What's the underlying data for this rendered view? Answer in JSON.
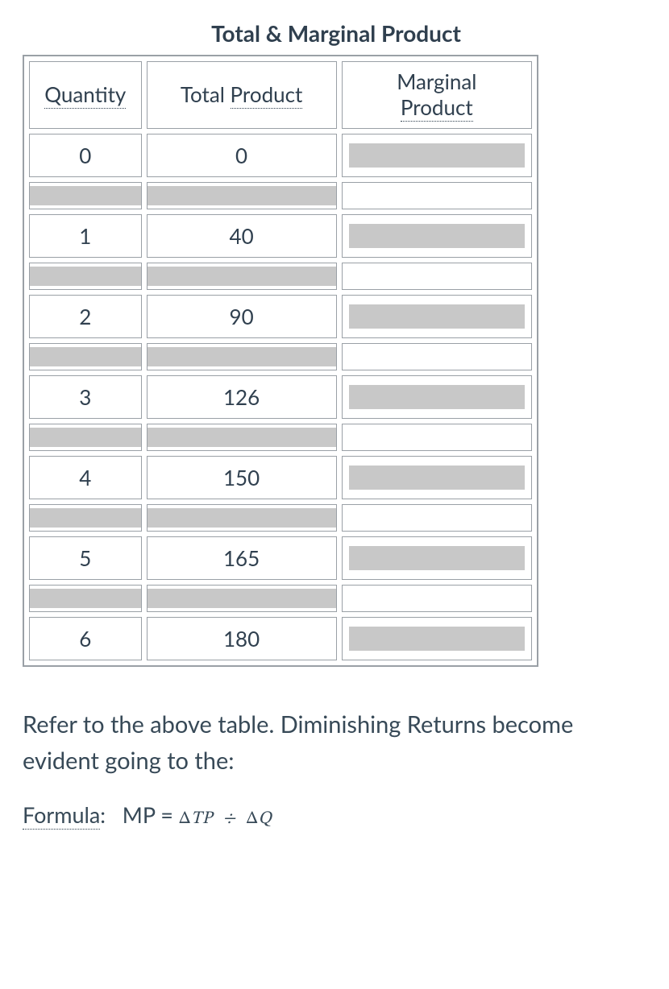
{
  "title": "Total & Marginal Product",
  "columns": {
    "qty": "Quantity",
    "tp_prefix": "Total ",
    "tp_link": "Product",
    "mp_line1": "Marginal",
    "mp_line2": "Product"
  },
  "rows": [
    {
      "qty": "0",
      "tp": "0"
    },
    {
      "qty": "1",
      "tp": "40"
    },
    {
      "qty": "2",
      "tp": "90"
    },
    {
      "qty": "3",
      "tp": "126"
    },
    {
      "qty": "4",
      "tp": "150"
    },
    {
      "qty": "5",
      "tp": "165"
    },
    {
      "qty": "6",
      "tp": "180"
    }
  ],
  "prompt": "Refer to the above table. Diminishing Returns become evident going to the:",
  "formula": {
    "label": "Formula",
    "lhs": "MP",
    "rhs_a": "ΔTP",
    "op": "÷",
    "rhs_b": "ΔQ"
  },
  "style": {
    "shaded_fill": "#c8c8c8",
    "border_color": "#9aa0a6",
    "text_color": "#30404f"
  }
}
